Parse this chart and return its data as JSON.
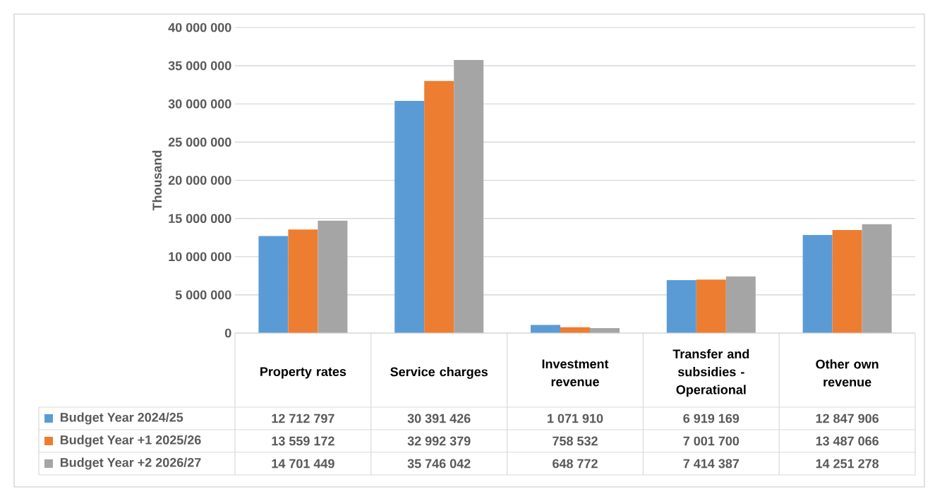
{
  "chart_data": {
    "type": "bar",
    "ylabel": "Thousand",
    "categories": [
      "Property rates",
      "Service charges",
      "Investment revenue",
      "Transfer and subsidies - Operational",
      "Other own revenue"
    ],
    "series": [
      {
        "name": "Budget Year 2024/25",
        "color": "#5b9bd5",
        "values": [
          12712797,
          30391426,
          1071910,
          6919169,
          12847906
        ]
      },
      {
        "name": "Budget Year +1 2025/26",
        "color": "#ed7d31",
        "values": [
          13559172,
          32992379,
          758532,
          7001700,
          13487066
        ]
      },
      {
        "name": "Budget Year +2 2026/27",
        "color": "#a5a5a5",
        "values": [
          14701449,
          35746042,
          648772,
          7414387,
          14251278
        ]
      }
    ],
    "ylim": [
      0,
      40000000
    ],
    "yticks": [
      {
        "value": 0,
        "label": "0"
      },
      {
        "value": 5000000,
        "label": "5 000 000"
      },
      {
        "value": 10000000,
        "label": "10 000 000"
      },
      {
        "value": 15000000,
        "label": "15 000 000"
      },
      {
        "value": 20000000,
        "label": "20 000 000"
      },
      {
        "value": 25000000,
        "label": "25 000 000"
      },
      {
        "value": 30000000,
        "label": "30 000 000"
      },
      {
        "value": 35000000,
        "label": "35 000 000"
      },
      {
        "value": 40000000,
        "label": "40 000 000"
      }
    ],
    "grid": "y",
    "data_labels": true,
    "legend": "bottom left"
  }
}
